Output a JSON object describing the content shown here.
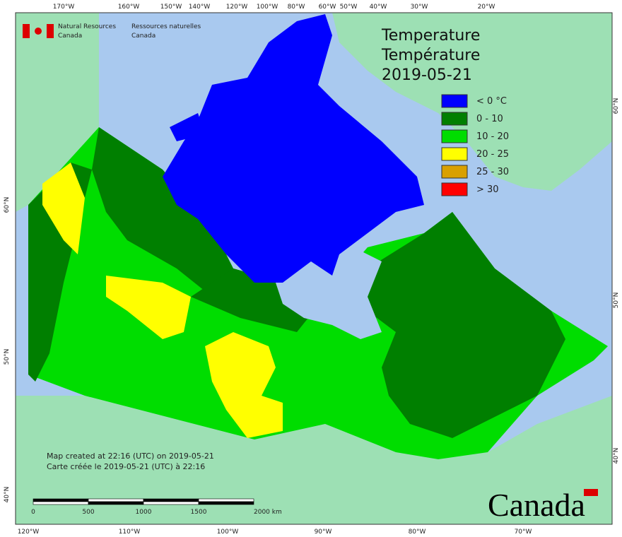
{
  "header": {
    "agency_en": [
      "Natural Resources",
      "Canada"
    ],
    "agency_fr": [
      "Ressources naturelles",
      "Canada"
    ]
  },
  "title": [
    "Temperature",
    "Température",
    "2019-05-21"
  ],
  "legend": [
    {
      "label": "< 0 °C",
      "color": "#0000ff"
    },
    {
      "label": "0 - 10",
      "color": "#007f00"
    },
    {
      "label": "10 - 20",
      "color": "#00dd00"
    },
    {
      "label": "20 - 25",
      "color": "#ffff00"
    },
    {
      "label": "25 - 30",
      "color": "#d9a000"
    },
    {
      "label": "> 30",
      "color": "#ff0000"
    }
  ],
  "notes": [
    "Map created at 22:16 (UTC) on 2019-05-21",
    "Carte créée le 2019-05-21 (UTC) à 22:16"
  ],
  "scale_bar": [
    "0",
    "500",
    "1000",
    "1500",
    "2000 km"
  ],
  "graticule": {
    "top": [
      "170°W",
      "160°W",
      "150°W",
      "140°W",
      "120°W",
      "100°W",
      "80°W",
      "60°W",
      "50°W",
      "40°W",
      "30°W",
      "20°W"
    ],
    "bottom": [
      "120°W",
      "110°W",
      "100°W",
      "90°W",
      "80°W",
      "70°W"
    ],
    "left": [
      "60°N",
      "50°N",
      "40°N"
    ],
    "right": [
      "60°N",
      "50°N",
      "40°N"
    ]
  },
  "wordmark": "Canada"
}
